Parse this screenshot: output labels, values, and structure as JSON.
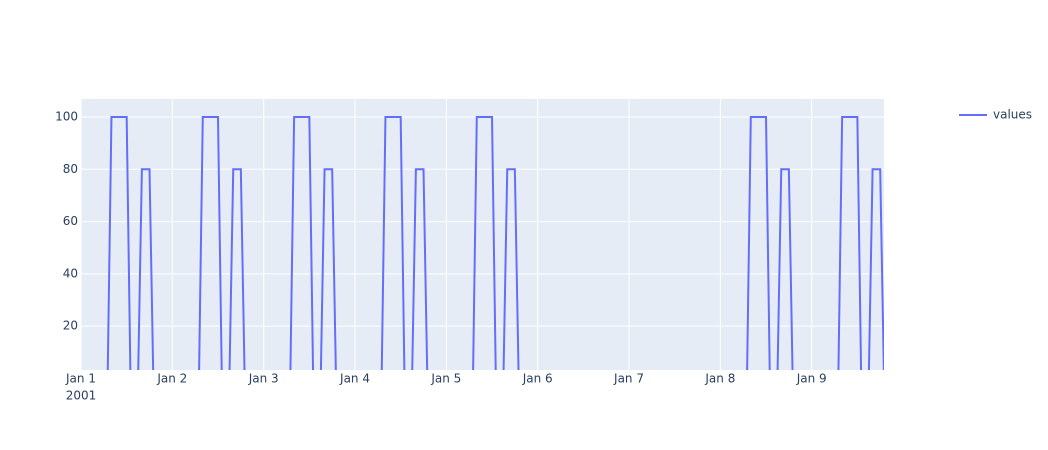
{
  "chart_data": {
    "type": "line",
    "x": [
      "2001-01-01 00:00",
      "2001-01-01 07:00",
      "2001-01-01 08:00",
      "2001-01-01 12:00",
      "2001-01-01 13:00",
      "2001-01-01 15:00",
      "2001-01-01 16:00",
      "2001-01-01 18:00",
      "2001-01-01 19:00",
      "2001-01-02 07:00",
      "2001-01-02 08:00",
      "2001-01-02 12:00",
      "2001-01-02 13:00",
      "2001-01-02 15:00",
      "2001-01-02 16:00",
      "2001-01-02 18:00",
      "2001-01-02 19:00",
      "2001-01-03 07:00",
      "2001-01-03 08:00",
      "2001-01-03 12:00",
      "2001-01-03 13:00",
      "2001-01-03 15:00",
      "2001-01-03 16:00",
      "2001-01-03 18:00",
      "2001-01-03 19:00",
      "2001-01-04 07:00",
      "2001-01-04 08:00",
      "2001-01-04 12:00",
      "2001-01-04 13:00",
      "2001-01-04 15:00",
      "2001-01-04 16:00",
      "2001-01-04 18:00",
      "2001-01-04 19:00",
      "2001-01-05 07:00",
      "2001-01-05 08:00",
      "2001-01-05 12:00",
      "2001-01-05 13:00",
      "2001-01-05 15:00",
      "2001-01-05 16:00",
      "2001-01-05 18:00",
      "2001-01-05 19:00",
      "2001-01-08 07:00",
      "2001-01-08 08:00",
      "2001-01-08 12:00",
      "2001-01-08 13:00",
      "2001-01-08 15:00",
      "2001-01-08 16:00",
      "2001-01-08 18:00",
      "2001-01-08 19:00",
      "2001-01-09 07:00",
      "2001-01-09 08:00",
      "2001-01-09 12:00",
      "2001-01-09 13:00",
      "2001-01-09 15:00",
      "2001-01-09 16:00",
      "2001-01-09 18:00",
      "2001-01-09 19:00"
    ],
    "series": [
      {
        "name": "values",
        "color": "#636efa",
        "values": [
          0,
          0,
          100,
          100,
          0,
          0,
          80,
          80,
          0,
          0,
          100,
          100,
          0,
          0,
          80,
          80,
          0,
          0,
          100,
          100,
          0,
          0,
          80,
          80,
          0,
          0,
          100,
          100,
          0,
          0,
          80,
          80,
          0,
          0,
          100,
          100,
          0,
          0,
          80,
          80,
          0,
          0,
          100,
          100,
          0,
          0,
          80,
          80,
          0,
          0,
          100,
          100,
          0,
          0,
          80,
          80,
          0
        ]
      }
    ],
    "xlim": [
      "2001-01-01 00:00",
      "2001-01-09 19:00"
    ],
    "xticks": [
      {
        "value": "2001-01-01",
        "label": "Jan 1",
        "sublabel": "2001"
      },
      {
        "value": "2001-01-02",
        "label": "Jan 2"
      },
      {
        "value": "2001-01-03",
        "label": "Jan 3"
      },
      {
        "value": "2001-01-04",
        "label": "Jan 4"
      },
      {
        "value": "2001-01-05",
        "label": "Jan 5"
      },
      {
        "value": "2001-01-06",
        "label": "Jan 6"
      },
      {
        "value": "2001-01-07",
        "label": "Jan 7"
      },
      {
        "value": "2001-01-08",
        "label": "Jan 8"
      },
      {
        "value": "2001-01-09",
        "label": "Jan 9"
      }
    ],
    "ylim": [
      3.2,
      106.9
    ],
    "yticks": [
      20,
      40,
      60,
      80,
      100
    ],
    "grid": true,
    "legend": "top-right"
  }
}
